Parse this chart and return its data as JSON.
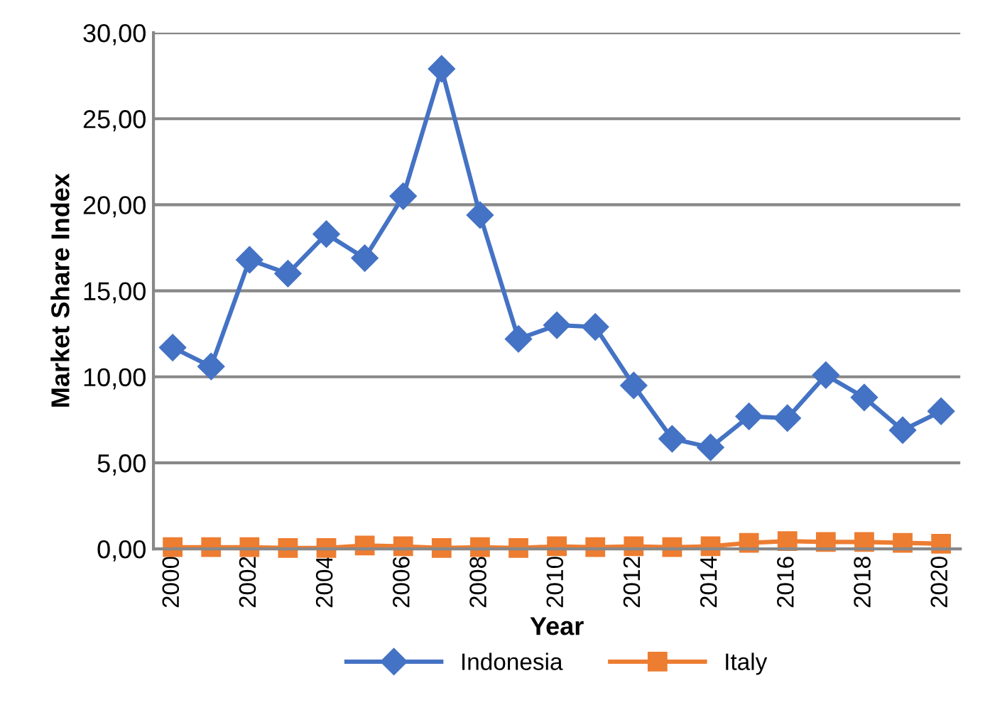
{
  "chart_data": {
    "type": "line",
    "xlabel": "Year",
    "ylabel": "Market Share Index",
    "x": [
      2000,
      2001,
      2002,
      2003,
      2004,
      2005,
      2006,
      2007,
      2008,
      2009,
      2010,
      2011,
      2012,
      2013,
      2014,
      2015,
      2016,
      2017,
      2018,
      2019,
      2020
    ],
    "series": [
      {
        "name": "Indonesia",
        "color": "#4472c4",
        "marker": "diamond",
        "values": [
          11.7,
          10.6,
          16.8,
          16.0,
          18.3,
          16.9,
          20.5,
          27.9,
          19.4,
          12.2,
          13.0,
          12.9,
          9.5,
          6.4,
          5.9,
          7.7,
          7.6,
          10.1,
          8.8,
          6.9,
          8.0
        ]
      },
      {
        "name": "Italy",
        "color": "#ed7d31",
        "marker": "square",
        "values": [
          0.1,
          0.1,
          0.1,
          0.05,
          0.05,
          0.2,
          0.15,
          0.05,
          0.1,
          0.05,
          0.15,
          0.1,
          0.15,
          0.1,
          0.15,
          0.35,
          0.45,
          0.4,
          0.4,
          0.35,
          0.3
        ]
      }
    ],
    "xlim": [
      1999.5,
      2020.5
    ],
    "xticks": [
      2000,
      2002,
      2004,
      2006,
      2008,
      2010,
      2012,
      2014,
      2016,
      2018,
      2020
    ],
    "ylim": [
      0,
      30
    ],
    "yticks": [
      {
        "value": 0,
        "label": "0,00"
      },
      {
        "value": 5,
        "label": "5,00"
      },
      {
        "value": 10,
        "label": "10,00"
      },
      {
        "value": 15,
        "label": "15,00"
      },
      {
        "value": 20,
        "label": "20,00"
      },
      {
        "value": 25,
        "label": "25,00"
      },
      {
        "value": 30,
        "label": "30,00"
      }
    ],
    "grid": "y",
    "legend": "bottom",
    "line_style": "solid"
  }
}
